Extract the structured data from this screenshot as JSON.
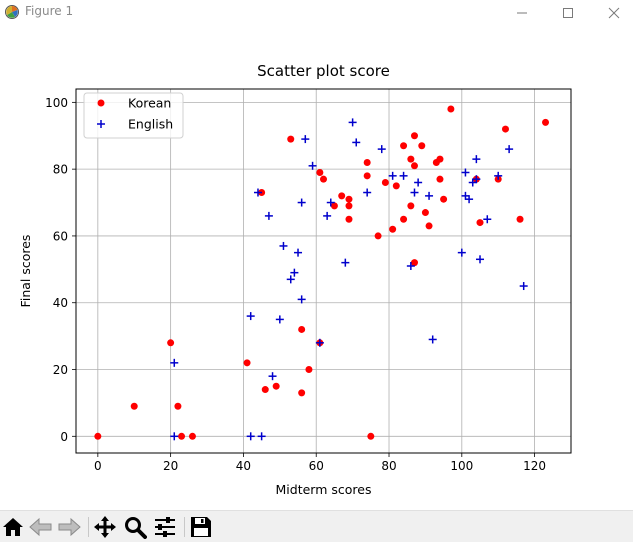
{
  "window": {
    "title": "Figure 1"
  },
  "toolbar": {
    "items": [
      "home-icon",
      "back-arrow-icon",
      "forward-arrow-icon",
      "pan-icon",
      "zoom-icon",
      "configure-subplots-icon",
      "save-icon"
    ]
  },
  "colors": {
    "korean": "#ff0000",
    "english": "#0000cc",
    "grid": "#b0b0b0"
  },
  "chart_data": {
    "type": "scatter",
    "title": "Scatter plot score",
    "xlabel": "Midterm scores",
    "ylabel": "Final scores",
    "xlim": [
      -6,
      130
    ],
    "ylim": [
      -5,
      104
    ],
    "xticks": [
      0,
      20,
      40,
      60,
      80,
      100,
      120
    ],
    "yticks": [
      0,
      20,
      40,
      60,
      80,
      100
    ],
    "grid": true,
    "legend_position": "top-left",
    "series": [
      {
        "name": "Korean",
        "marker": "circle",
        "color": "#ff0000",
        "points": [
          [
            0,
            0
          ],
          [
            10,
            9
          ],
          [
            20,
            28
          ],
          [
            22,
            9
          ],
          [
            23,
            0
          ],
          [
            26,
            0
          ],
          [
            41,
            22
          ],
          [
            45,
            73
          ],
          [
            46,
            14
          ],
          [
            49,
            15
          ],
          [
            53,
            89
          ],
          [
            56,
            32
          ],
          [
            56,
            13
          ],
          [
            58,
            20
          ],
          [
            61,
            28
          ],
          [
            61,
            79
          ],
          [
            62,
            77
          ],
          [
            65,
            69
          ],
          [
            67,
            72
          ],
          [
            69,
            71
          ],
          [
            69,
            69
          ],
          [
            69,
            65
          ],
          [
            74,
            82
          ],
          [
            74,
            78
          ],
          [
            75,
            0
          ],
          [
            77,
            60
          ],
          [
            79,
            76
          ],
          [
            81,
            62
          ],
          [
            82,
            75
          ],
          [
            84,
            87
          ],
          [
            84,
            65
          ],
          [
            86,
            83
          ],
          [
            86,
            69
          ],
          [
            87,
            90
          ],
          [
            87,
            81
          ],
          [
            87,
            52
          ],
          [
            89,
            87
          ],
          [
            90,
            67
          ],
          [
            91,
            63
          ],
          [
            93,
            82
          ],
          [
            94,
            83
          ],
          [
            94,
            77
          ],
          [
            95,
            71
          ],
          [
            97,
            98
          ],
          [
            104,
            77
          ],
          [
            105,
            64
          ],
          [
            110,
            77
          ],
          [
            112,
            92
          ],
          [
            116,
            65
          ],
          [
            123,
            94
          ]
        ]
      },
      {
        "name": "English",
        "marker": "plus",
        "color": "#0000cc",
        "points": [
          [
            21,
            22
          ],
          [
            21,
            0
          ],
          [
            42,
            36
          ],
          [
            42,
            0
          ],
          [
            44,
            73
          ],
          [
            45,
            0
          ],
          [
            47,
            66
          ],
          [
            48,
            18
          ],
          [
            50,
            35
          ],
          [
            51,
            57
          ],
          [
            53,
            47
          ],
          [
            54,
            49
          ],
          [
            55,
            55
          ],
          [
            56,
            41
          ],
          [
            56,
            70
          ],
          [
            57,
            89
          ],
          [
            59,
            81
          ],
          [
            61,
            28
          ],
          [
            63,
            66
          ],
          [
            64,
            70
          ],
          [
            68,
            52
          ],
          [
            70,
            94
          ],
          [
            71,
            88
          ],
          [
            74,
            73
          ],
          [
            78,
            86
          ],
          [
            81,
            78
          ],
          [
            84,
            78
          ],
          [
            86,
            51
          ],
          [
            87,
            73
          ],
          [
            88,
            76
          ],
          [
            91,
            72
          ],
          [
            92,
            29
          ],
          [
            100,
            55
          ],
          [
            101,
            79
          ],
          [
            101,
            72
          ],
          [
            102,
            71
          ],
          [
            103,
            76
          ],
          [
            104,
            83
          ],
          [
            104,
            77
          ],
          [
            105,
            53
          ],
          [
            107,
            65
          ],
          [
            110,
            78
          ],
          [
            113,
            86
          ],
          [
            117,
            45
          ]
        ]
      }
    ]
  }
}
